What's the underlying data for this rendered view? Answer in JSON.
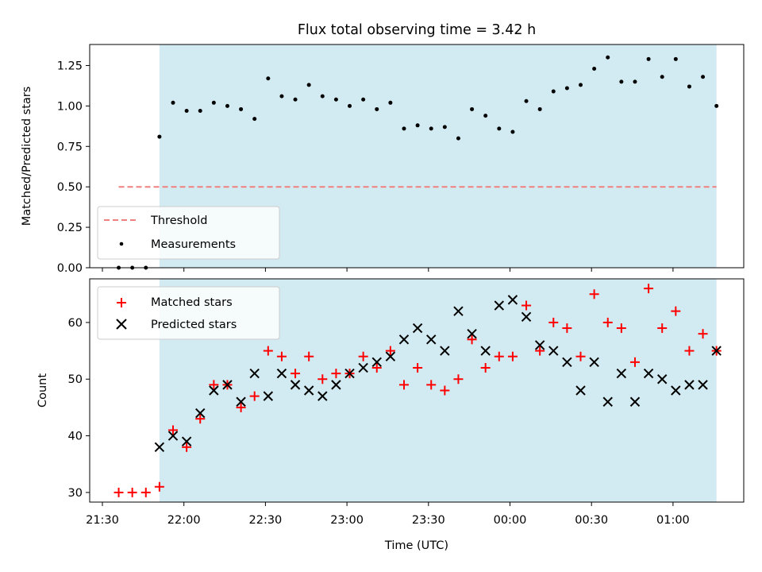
{
  "figure": {
    "title": "Flux total observing time = 3.42 h",
    "xlabel": "Time (UTC)",
    "x_ticks": [
      "21:30",
      "22:00",
      "22:30",
      "23:00",
      "23:30",
      "00:00",
      "00:30",
      "01:00"
    ],
    "shaded_region": {
      "x_start": "21:51",
      "x_end": "01:16",
      "color": "#add8e6"
    }
  },
  "chart_data": [
    {
      "type": "scatter",
      "title": "Flux total observing time = 3.42 h",
      "xlabel": "",
      "ylabel": "Matched/Predicted stars",
      "ylim": [
        0,
        1.38
      ],
      "y_ticks": [
        "0.00",
        "0.25",
        "0.50",
        "0.75",
        "1.00",
        "1.25"
      ],
      "legend_position": "bottom-left",
      "threshold": {
        "name": "Threshold",
        "value": 0.5,
        "x_start": "21:36",
        "x_end": "01:16",
        "color": "#f08080"
      },
      "series": [
        {
          "name": "Measurements",
          "color": "#000000",
          "x": [
            "21:36",
            "21:41",
            "21:46",
            "21:51",
            "21:56",
            "22:01",
            "22:06",
            "22:11",
            "22:16",
            "22:21",
            "22:26",
            "22:31",
            "22:36",
            "22:41",
            "22:46",
            "22:51",
            "22:56",
            "23:01",
            "23:06",
            "23:11",
            "23:16",
            "23:21",
            "23:26",
            "23:31",
            "23:36",
            "23:41",
            "23:46",
            "23:51",
            "23:56",
            "00:01",
            "00:06",
            "00:11",
            "00:16",
            "00:21",
            "00:26",
            "00:31",
            "00:36",
            "00:41",
            "00:46",
            "00:51",
            "00:56",
            "01:01",
            "01:06",
            "01:11",
            "01:16"
          ],
          "y": [
            0.0,
            0.0,
            0.0,
            0.81,
            1.02,
            0.97,
            0.97,
            1.02,
            1.0,
            0.98,
            0.92,
            1.17,
            1.06,
            1.04,
            1.13,
            1.06,
            1.04,
            1.0,
            1.04,
            0.98,
            1.02,
            0.86,
            0.88,
            0.86,
            0.87,
            0.8,
            0.98,
            0.94,
            0.86,
            0.84,
            1.03,
            0.98,
            1.09,
            1.11,
            1.13,
            1.23,
            1.3,
            1.15,
            1.15,
            1.29,
            1.18,
            1.29,
            1.12,
            1.18,
            1.0
          ]
        }
      ]
    },
    {
      "type": "scatter",
      "xlabel": "Time (UTC)",
      "ylabel": "Count",
      "ylim": [
        28.3,
        67.7
      ],
      "y_ticks": [
        "30",
        "40",
        "50",
        "60"
      ],
      "legend_position": "top-left",
      "series": [
        {
          "name": "Matched stars",
          "marker": "+",
          "color": "#ff0000",
          "x": [
            "21:36",
            "21:41",
            "21:46",
            "21:51",
            "21:56",
            "22:01",
            "22:06",
            "22:11",
            "22:16",
            "22:21",
            "22:26",
            "22:31",
            "22:36",
            "22:41",
            "22:46",
            "22:51",
            "22:56",
            "23:01",
            "23:06",
            "23:11",
            "23:16",
            "23:21",
            "23:26",
            "23:31",
            "23:36",
            "23:41",
            "23:46",
            "23:51",
            "23:56",
            "00:01",
            "00:06",
            "00:11",
            "00:16",
            "00:21",
            "00:26",
            "00:31",
            "00:36",
            "00:41",
            "00:46",
            "00:51",
            "00:56",
            "01:01",
            "01:06",
            "01:11",
            "01:16"
          ],
          "y": [
            30,
            30,
            30,
            31,
            41,
            38,
            43,
            49,
            49,
            45,
            47,
            55,
            54,
            51,
            54,
            50,
            51,
            51,
            54,
            52,
            55,
            49,
            52,
            49,
            48,
            50,
            57,
            52,
            54,
            54,
            63,
            55,
            60,
            59,
            54,
            65,
            60,
            59,
            53,
            66,
            59,
            62,
            55,
            58,
            55
          ]
        },
        {
          "name": "Predicted stars",
          "marker": "x",
          "color": "#000000",
          "x": [
            "21:51",
            "21:56",
            "22:01",
            "22:06",
            "22:11",
            "22:16",
            "22:21",
            "22:26",
            "22:31",
            "22:36",
            "22:41",
            "22:46",
            "22:51",
            "22:56",
            "23:01",
            "23:06",
            "23:11",
            "23:16",
            "23:21",
            "23:26",
            "23:31",
            "23:36",
            "23:41",
            "23:46",
            "23:51",
            "23:56",
            "00:01",
            "00:06",
            "00:11",
            "00:16",
            "00:21",
            "00:26",
            "00:31",
            "00:36",
            "00:41",
            "00:46",
            "00:51",
            "00:56",
            "01:01",
            "01:06",
            "01:11",
            "01:16"
          ],
          "y": [
            38,
            40,
            39,
            44,
            48,
            49,
            46,
            51,
            47,
            51,
            49,
            48,
            47,
            49,
            51,
            52,
            53,
            54,
            57,
            59,
            57,
            55,
            62,
            58,
            55,
            63,
            64,
            61,
            56,
            55,
            53,
            48,
            53,
            46,
            51,
            46,
            51,
            50,
            48,
            49,
            49,
            55
          ]
        }
      ]
    }
  ]
}
